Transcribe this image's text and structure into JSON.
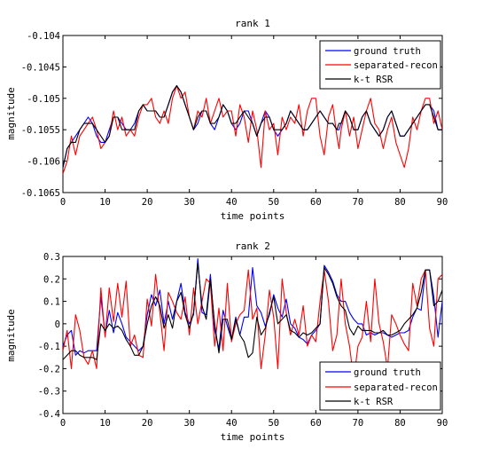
{
  "colors": {
    "ground_truth": "#0000ff",
    "separated_recon": "#ff0000",
    "ktrsr": "#000000"
  },
  "chart_data": [
    {
      "type": "line",
      "title": "rank 1",
      "xlabel": "time points",
      "ylabel": "magnitude",
      "xlim": [
        0,
        90
      ],
      "ylim": [
        -0.1065,
        -0.104
      ],
      "xticks": [
        0,
        10,
        20,
        30,
        40,
        50,
        60,
        70,
        80,
        90
      ],
      "xtick_labels": [
        "0",
        "10",
        "20",
        "30",
        "40",
        "50",
        "60",
        "70",
        "80",
        "90"
      ],
      "yticks": [
        -0.104,
        -0.1045,
        -0.105,
        -0.1055,
        -0.106,
        -0.1065
      ],
      "ytick_labels": [
        "-0.104",
        "-0.1045",
        "-0.105",
        "-0.1055",
        "-0.106",
        "-0.1065"
      ],
      "legend_position": "top-right",
      "grid": false,
      "x": [
        0,
        1,
        2,
        3,
        4,
        5,
        6,
        7,
        8,
        9,
        10,
        11,
        12,
        13,
        14,
        15,
        16,
        17,
        18,
        19,
        20,
        21,
        22,
        23,
        24,
        25,
        26,
        27,
        28,
        29,
        30,
        31,
        32,
        33,
        34,
        35,
        36,
        37,
        38,
        39,
        40,
        41,
        42,
        43,
        44,
        45,
        46,
        47,
        48,
        49,
        50,
        51,
        52,
        53,
        54,
        55,
        56,
        57,
        58,
        59,
        60,
        61,
        62,
        63,
        64,
        65,
        65.5,
        66,
        67,
        68,
        69,
        70,
        71,
        72,
        73,
        74,
        75,
        76,
        77,
        78,
        79,
        80,
        81,
        82,
        83,
        84,
        85,
        86,
        87,
        88,
        89,
        90
      ],
      "series": [
        {
          "name": "ground truth",
          "color_key": "ground_truth",
          "values": [
            -0.1061,
            -0.1058,
            -0.1057,
            -0.1056,
            -0.1055,
            -0.1054,
            -0.1053,
            -0.1054,
            -0.1056,
            -0.1057,
            -0.1057,
            -0.1055,
            -0.1053,
            -0.1053,
            -0.1054,
            -0.1055,
            -0.1055,
            -0.1054,
            -0.1052,
            -0.1051,
            -0.1052,
            -0.1052,
            -0.1052,
            -0.1053,
            -0.1053,
            -0.1051,
            -0.1049,
            -0.1048,
            -0.1049,
            -0.1051,
            -0.1053,
            -0.1055,
            -0.1054,
            -0.1052,
            -0.1052,
            -0.1054,
            -0.1055,
            -0.1053,
            -0.1051,
            -0.1052,
            -0.1054,
            -0.1055,
            -0.1054,
            -0.1052,
            -0.1052,
            -0.1054,
            -0.1056,
            -0.1054,
            -0.1052,
            -0.1053,
            -0.1055,
            -0.1056,
            -0.1055,
            -0.1054,
            -0.1052,
            -0.1053,
            -0.1054,
            -0.1055,
            -0.1055,
            -0.1054,
            -0.1053,
            -0.1052,
            -0.1053,
            -0.1054,
            -0.1054,
            -0.1055,
            -0.1055,
            -0.1054,
            -0.1052,
            -0.1053,
            -0.1055,
            -0.1055,
            -0.1053,
            -0.1052,
            -0.1054,
            -0.1055,
            -0.1056,
            -0.1055,
            -0.1053,
            -0.1052,
            -0.1054,
            -0.1056,
            -0.1056,
            -0.1055,
            -0.1054,
            -0.1053,
            -0.1052,
            -0.1051,
            -0.1051,
            -0.1052,
            -0.1055,
            -0.1055
          ]
        },
        {
          "name": "separated-recon",
          "color_key": "separated_recon",
          "values": [
            -0.1062,
            -0.106,
            -0.1056,
            -0.1059,
            -0.1056,
            -0.1055,
            -0.1054,
            -0.1053,
            -0.1055,
            -0.1058,
            -0.1057,
            -0.1056,
            -0.1052,
            -0.1055,
            -0.1053,
            -0.1056,
            -0.1055,
            -0.1056,
            -0.1053,
            -0.1051,
            -0.1051,
            -0.105,
            -0.1053,
            -0.1054,
            -0.1052,
            -0.1054,
            -0.105,
            -0.1048,
            -0.105,
            -0.1049,
            -0.1053,
            -0.1055,
            -0.1052,
            -0.1053,
            -0.105,
            -0.1054,
            -0.1052,
            -0.105,
            -0.1053,
            -0.1052,
            -0.1052,
            -0.1056,
            -0.1051,
            -0.1053,
            -0.1057,
            -0.1052,
            -0.1055,
            -0.1061,
            -0.1052,
            -0.1055,
            -0.1054,
            -0.1059,
            -0.1053,
            -0.1055,
            -0.1053,
            -0.1054,
            -0.1051,
            -0.1056,
            -0.1052,
            -0.105,
            -0.105,
            -0.1056,
            -0.1059,
            -0.1053,
            -0.1051,
            -0.1056,
            -0.1058,
            -0.1055,
            -0.1052,
            -0.1056,
            -0.1053,
            -0.1058,
            -0.1055,
            -0.1052,
            -0.105,
            -0.1054,
            -0.1055,
            -0.1058,
            -0.1055,
            -0.1053,
            -0.1057,
            -0.1059,
            -0.1061,
            -0.1058,
            -0.1053,
            -0.1055,
            -0.1052,
            -0.105,
            -0.105,
            -0.1054,
            -0.1052,
            -0.1055
          ]
        },
        {
          "name": "k-t RSR",
          "color_key": "ktrsr",
          "values": [
            -0.1061,
            -0.1058,
            -0.1057,
            -0.1057,
            -0.1055,
            -0.1054,
            -0.1054,
            -0.1054,
            -0.1055,
            -0.1056,
            -0.1057,
            -0.1056,
            -0.1053,
            -0.1053,
            -0.1055,
            -0.1055,
            -0.1055,
            -0.1055,
            -0.1052,
            -0.1051,
            -0.1052,
            -0.1052,
            -0.1052,
            -0.1053,
            -0.1053,
            -0.1051,
            -0.1049,
            -0.1048,
            -0.1049,
            -0.1051,
            -0.1053,
            -0.1055,
            -0.1053,
            -0.1052,
            -0.1052,
            -0.1054,
            -0.1054,
            -0.1053,
            -0.1051,
            -0.1052,
            -0.1054,
            -0.1054,
            -0.1053,
            -0.1052,
            -0.1053,
            -0.1054,
            -0.1056,
            -0.1054,
            -0.1053,
            -0.1053,
            -0.1055,
            -0.1055,
            -0.1055,
            -0.1054,
            -0.1052,
            -0.1053,
            -0.1054,
            -0.1055,
            -0.1055,
            -0.1054,
            -0.1053,
            -0.1052,
            -0.1053,
            -0.1054,
            -0.1054,
            -0.1055,
            -0.1054,
            -0.1054,
            -0.1052,
            -0.1053,
            -0.1055,
            -0.1055,
            -0.1053,
            -0.1052,
            -0.1054,
            -0.1055,
            -0.1056,
            -0.1055,
            -0.1053,
            -0.1052,
            -0.1054,
            -0.1056,
            -0.1056,
            -0.1055,
            -0.1054,
            -0.1053,
            -0.1052,
            -0.1051,
            -0.1051,
            -0.1053,
            -0.1055,
            -0.1055
          ]
        }
      ]
    },
    {
      "type": "line",
      "title": "rank 2",
      "xlabel": "time points",
      "ylabel": "magnitude",
      "xlim": [
        0,
        90
      ],
      "ylim": [
        -0.4,
        0.3
      ],
      "xticks": [
        0,
        10,
        20,
        30,
        40,
        50,
        60,
        70,
        80,
        90
      ],
      "xtick_labels": [
        "0",
        "10",
        "20",
        "30",
        "40",
        "50",
        "60",
        "70",
        "80",
        "90"
      ],
      "yticks": [
        0.3,
        0.2,
        0.1,
        0,
        -0.1,
        -0.2,
        -0.3,
        -0.4
      ],
      "ytick_labels": [
        "0.3",
        "0.2",
        "0.1",
        "0",
        "-0.1",
        "-0.2",
        "-0.3",
        "-0.4"
      ],
      "legend_position": "bottom-right",
      "grid": false,
      "x": [
        0,
        1,
        2,
        3,
        4,
        5,
        6,
        7,
        8,
        9,
        10,
        11,
        12,
        13,
        14,
        15,
        16,
        17,
        18,
        19,
        20,
        21,
        22,
        23,
        24,
        25,
        26,
        27,
        28,
        29,
        30,
        31,
        32,
        33,
        34,
        35,
        36,
        37,
        38,
        39,
        40,
        41,
        42,
        43,
        44,
        45,
        46,
        47,
        48,
        49,
        50,
        51,
        52,
        53,
        54,
        55,
        56,
        57,
        58,
        59,
        60,
        61,
        62,
        63,
        64,
        65,
        66,
        67,
        68,
        69,
        70,
        71,
        72,
        73,
        74,
        75,
        76,
        77,
        78,
        79,
        80,
        81,
        82,
        83,
        84,
        85,
        86,
        87,
        88,
        89,
        90
      ],
      "series": [
        {
          "name": "ground truth",
          "color_key": "ground_truth",
          "values": [
            -0.1,
            -0.05,
            -0.03,
            -0.14,
            -0.12,
            -0.13,
            -0.12,
            -0.12,
            -0.12,
            0.12,
            -0.05,
            0.06,
            -0.04,
            0.05,
            0.0,
            -0.06,
            -0.08,
            -0.1,
            -0.12,
            -0.1,
            0.04,
            0.13,
            0.08,
            0.15,
            0.0,
            0.1,
            0.02,
            0.1,
            0.18,
            0.05,
            0.0,
            0.04,
            0.29,
            0.05,
            0.04,
            0.22,
            -0.03,
            -0.11,
            0.06,
            -0.01,
            -0.07,
            0.03,
            -0.05,
            0.03,
            0.03,
            0.25,
            0.08,
            0.05,
            -0.01,
            0.04,
            0.13,
            0.07,
            0.03,
            0.11,
            0.0,
            -0.02,
            -0.06,
            -0.07,
            -0.09,
            -0.05,
            -0.03,
            0.0,
            0.26,
            0.23,
            0.19,
            0.13,
            0.1,
            0.1,
            0.05,
            0.02,
            0.0,
            0.0,
            -0.05,
            -0.04,
            -0.05,
            -0.04,
            -0.04,
            -0.05,
            -0.06,
            -0.05,
            -0.04,
            -0.04,
            -0.03,
            0.03,
            0.07,
            0.06,
            0.24,
            0.24,
            0.12,
            -0.06,
            0.1
          ]
        },
        {
          "name": "separated-recon",
          "color_key": "separated_recon",
          "values": [
            -0.12,
            -0.03,
            -0.2,
            0.04,
            -0.03,
            -0.15,
            -0.18,
            -0.12,
            -0.2,
            0.16,
            -0.06,
            0.16,
            0.01,
            0.18,
            0.03,
            0.19,
            -0.1,
            -0.05,
            -0.14,
            -0.15,
            0.11,
            -0.01,
            0.22,
            0.05,
            -0.12,
            0.14,
            0.1,
            0.05,
            0.02,
            0.12,
            -0.05,
            0.16,
            0.0,
            0.1,
            0.2,
            0.18,
            -0.1,
            0.07,
            -0.12,
            0.18,
            -0.08,
            0.0,
            0.04,
            0.06,
            0.24,
            0.02,
            0.07,
            -0.2,
            -0.05,
            0.15,
            0.03,
            -0.2,
            0.2,
            0.05,
            -0.05,
            0.02,
            -0.05,
            0.08,
            -0.1,
            -0.05,
            -0.08,
            0.1,
            0.24,
            0.1,
            -0.12,
            -0.05,
            0.2,
            0.0,
            -0.1,
            -0.25,
            -0.1,
            -0.06,
            0.1,
            -0.08,
            0.2,
            0.0,
            -0.08,
            -0.2,
            0.04,
            0.0,
            -0.05,
            -0.09,
            -0.12,
            0.18,
            0.08,
            0.2,
            0.24,
            -0.02,
            -0.1,
            0.2,
            0.22
          ]
        },
        {
          "name": "k-t RSR",
          "color_key": "ktrsr",
          "values": [
            -0.16,
            -0.14,
            -0.12,
            -0.12,
            -0.14,
            -0.15,
            -0.15,
            -0.15,
            -0.16,
            0.0,
            -0.03,
            0.0,
            -0.02,
            -0.01,
            -0.03,
            -0.07,
            -0.1,
            -0.14,
            -0.14,
            -0.1,
            0.0,
            0.08,
            0.12,
            0.08,
            -0.02,
            0.04,
            -0.02,
            0.1,
            0.14,
            0.04,
            -0.02,
            0.05,
            0.27,
            0.08,
            0.02,
            0.2,
            0.0,
            -0.13,
            0.02,
            0.02,
            -0.07,
            0.02,
            -0.05,
            -0.08,
            -0.15,
            -0.13,
            0.03,
            -0.05,
            -0.02,
            0.05,
            0.12,
            0.0,
            0.02,
            0.04,
            -0.03,
            -0.04,
            -0.06,
            -0.04,
            -0.05,
            -0.04,
            -0.02,
            0.0,
            0.25,
            0.22,
            0.18,
            0.12,
            0.08,
            0.06,
            -0.02,
            -0.05,
            -0.01,
            -0.03,
            -0.03,
            -0.03,
            -0.04,
            -0.04,
            -0.03,
            -0.05,
            -0.05,
            -0.04,
            -0.03,
            0.0,
            0.02,
            0.04,
            0.07,
            0.14,
            0.24,
            0.24,
            0.08,
            0.1,
            0.15
          ]
        }
      ]
    }
  ]
}
